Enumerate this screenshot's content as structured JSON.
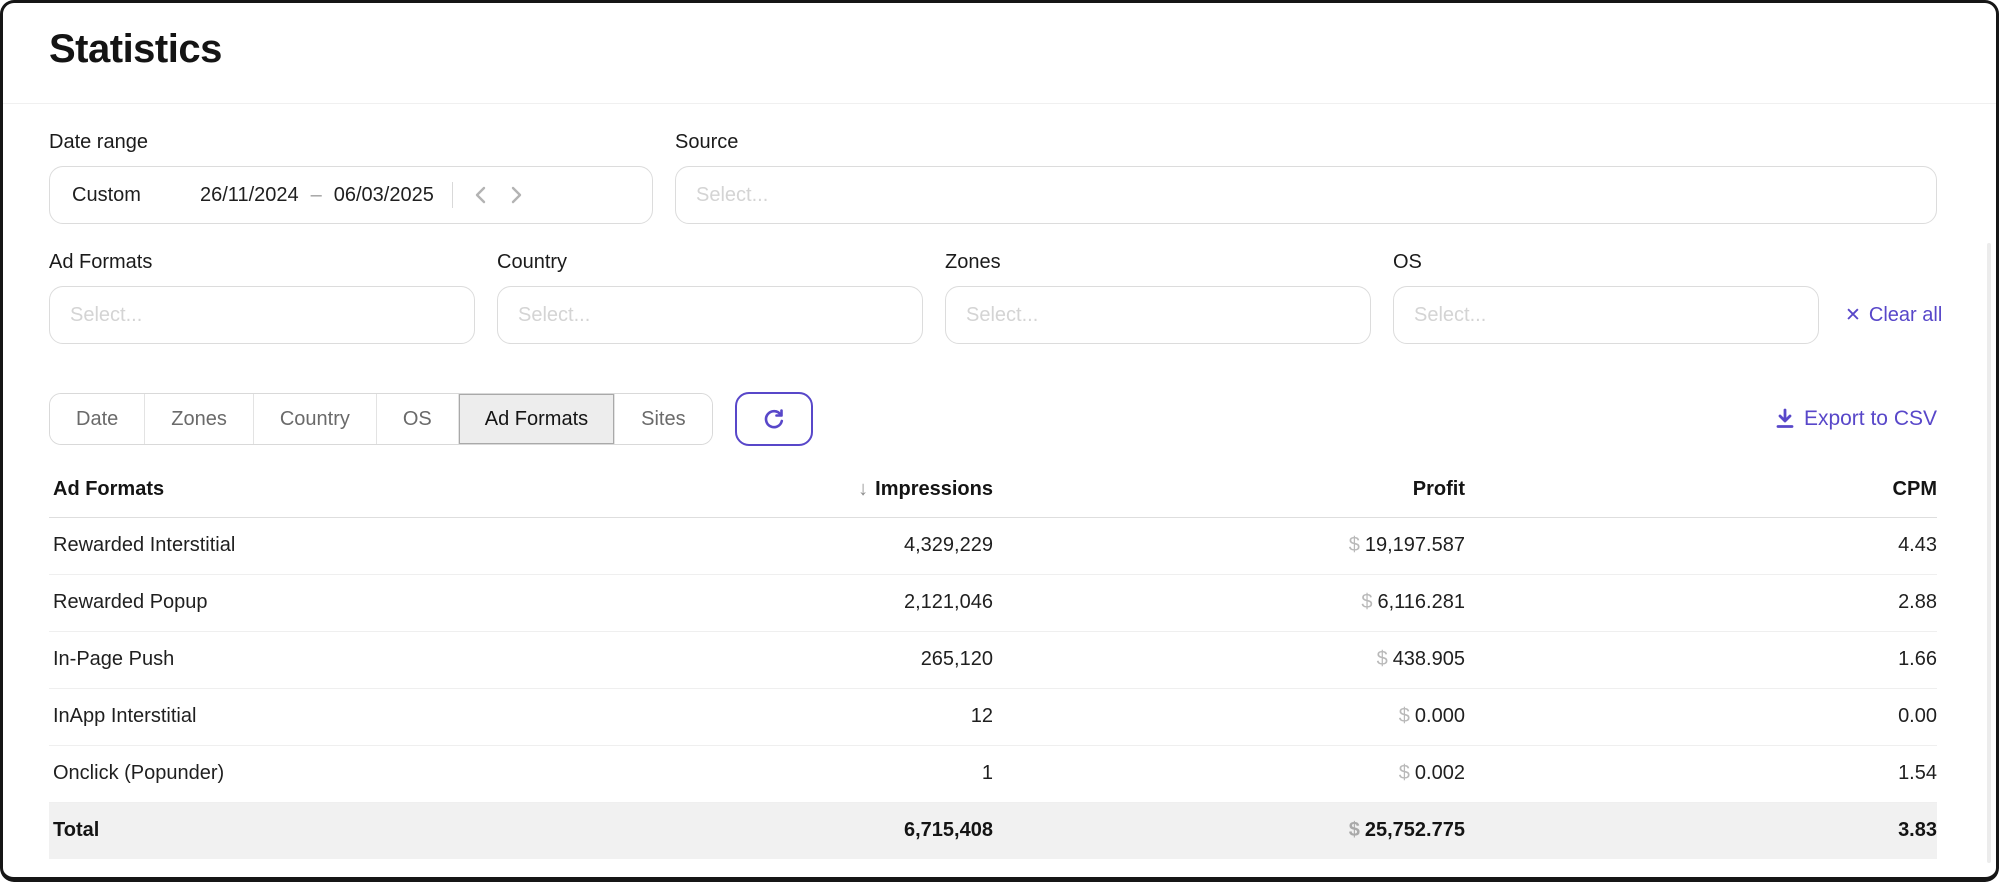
{
  "page": {
    "title": "Statistics"
  },
  "filters": {
    "date_range": {
      "label": "Date range",
      "preset": "Custom",
      "start": "26/11/2024",
      "separator": "–",
      "end": "06/03/2025"
    },
    "source": {
      "label": "Source",
      "placeholder": "Select..."
    },
    "ad_formats": {
      "label": "Ad Formats",
      "placeholder": "Select..."
    },
    "country": {
      "label": "Country",
      "placeholder": "Select..."
    },
    "zones": {
      "label": "Zones",
      "placeholder": "Select..."
    },
    "os": {
      "label": "OS",
      "placeholder": "Select..."
    },
    "clear_all_label": "Clear all"
  },
  "toolbar": {
    "tabs": [
      {
        "label": "Date",
        "active": false
      },
      {
        "label": "Zones",
        "active": false
      },
      {
        "label": "Country",
        "active": false
      },
      {
        "label": "OS",
        "active": false
      },
      {
        "label": "Ad Formats",
        "active": true
      },
      {
        "label": "Sites",
        "active": false
      }
    ],
    "refresh_icon": "refresh",
    "export_label": "Export to CSV"
  },
  "table": {
    "columns": [
      "Ad Formats",
      "Impressions",
      "Profit",
      "CPM"
    ],
    "sort_column": "Impressions",
    "sort_direction": "desc",
    "currency_symbol": "$",
    "rows": [
      {
        "ad_format": "Rewarded Interstitial",
        "impressions": "4,329,229",
        "profit": "19,197.587",
        "cpm": "4.43"
      },
      {
        "ad_format": "Rewarded Popup",
        "impressions": "2,121,046",
        "profit": "6,116.281",
        "cpm": "2.88"
      },
      {
        "ad_format": "In-Page Push",
        "impressions": "265,120",
        "profit": "438.905",
        "cpm": "1.66"
      },
      {
        "ad_format": "InApp Interstitial",
        "impressions": "12",
        "profit": "0.000",
        "cpm": "0.00"
      },
      {
        "ad_format": "Onclick (Popunder)",
        "impressions": "1",
        "profit": "0.002",
        "cpm": "1.54"
      }
    ],
    "total": {
      "label": "Total",
      "impressions": "6,715,408",
      "profit": "25,752.775",
      "cpm": "3.83"
    }
  },
  "colors": {
    "accent": "#5847c9",
    "active_tab_bg": "#ededed",
    "total_row_bg": "#f1f1f1",
    "border": "#dcdcdc",
    "placeholder": "#d4d4d4"
  }
}
